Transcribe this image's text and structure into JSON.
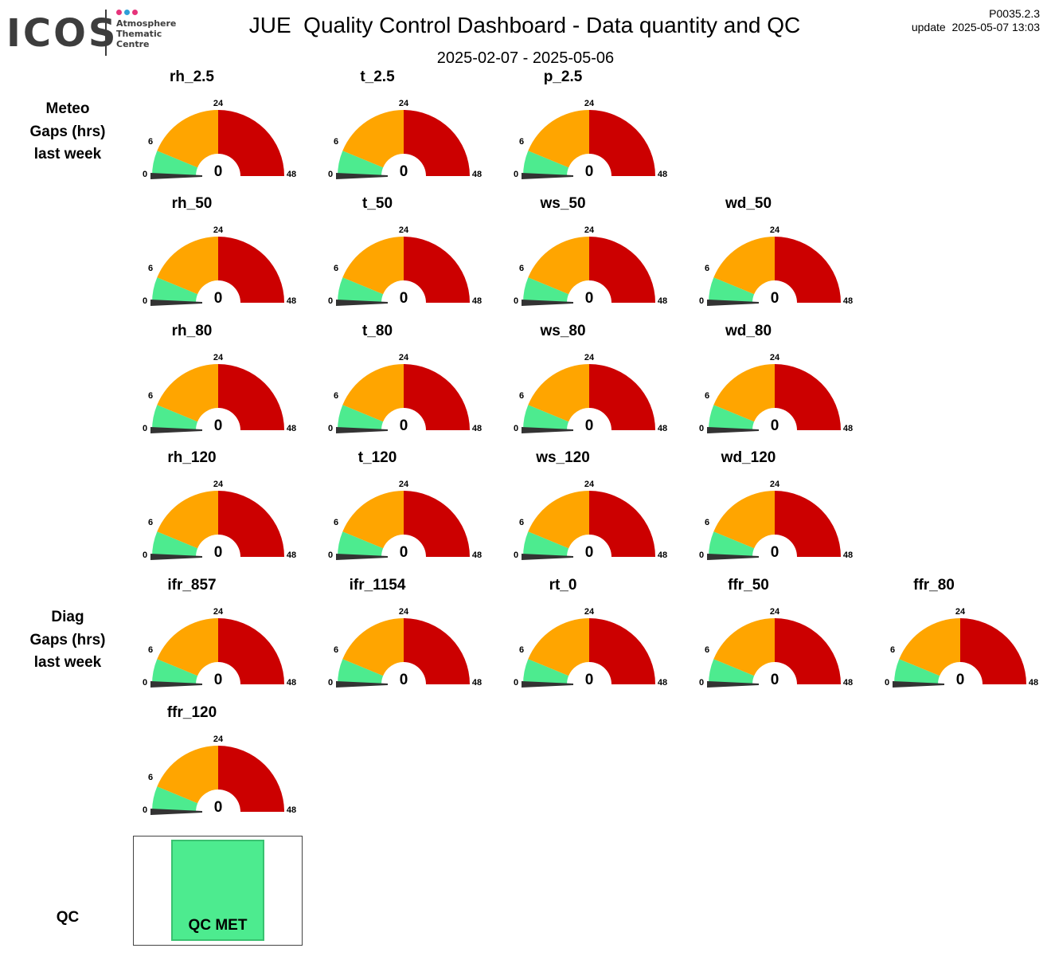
{
  "header": {
    "logo_text": "ICOS",
    "logo_sub": [
      "Atmosphere",
      "Thematic",
      "Centre"
    ],
    "logo_dot_colors": [
      "#e6337a",
      "#2f9fd8",
      "#e6337a"
    ],
    "title": "JUE  Quality Control Dashboard - Data quantity and QC",
    "subtitle": "2025-02-07 - 2025-05-06",
    "version": "P0035.2.3",
    "update": "update  2025-05-07 13:03"
  },
  "sections": {
    "meteo": [
      "Meteo",
      "Gaps (hrs)",
      "last week"
    ],
    "diag": [
      "Diag",
      "Gaps (hrs)",
      "last week"
    ],
    "qc": "QC"
  },
  "colors": {
    "green": "#4deb8f",
    "orange": "#ffa500",
    "red": "#cc0000",
    "needle": "#333333"
  },
  "chart_data": {
    "type": "gauge",
    "scale": {
      "min": 0,
      "max": 48
    },
    "bands": [
      {
        "from": 0,
        "to": 6,
        "color": "green"
      },
      {
        "from": 6,
        "to": 24,
        "color": "orange"
      },
      {
        "from": 24,
        "to": 48,
        "color": "red"
      }
    ],
    "tick_labels": [
      "0",
      "6",
      "24",
      "48"
    ],
    "gauges": [
      {
        "name": "rh_2.5",
        "value": 0,
        "row": 0,
        "col": 0
      },
      {
        "name": "t_2.5",
        "value": 0,
        "row": 0,
        "col": 1
      },
      {
        "name": "p_2.5",
        "value": 0,
        "row": 0,
        "col": 2
      },
      {
        "name": "rh_50",
        "value": 0,
        "row": 1,
        "col": 0
      },
      {
        "name": "t_50",
        "value": 0,
        "row": 1,
        "col": 1
      },
      {
        "name": "ws_50",
        "value": 0,
        "row": 1,
        "col": 2
      },
      {
        "name": "wd_50",
        "value": 0,
        "row": 1,
        "col": 3
      },
      {
        "name": "rh_80",
        "value": 0,
        "row": 2,
        "col": 0
      },
      {
        "name": "t_80",
        "value": 0,
        "row": 2,
        "col": 1
      },
      {
        "name": "ws_80",
        "value": 0,
        "row": 2,
        "col": 2
      },
      {
        "name": "wd_80",
        "value": 0,
        "row": 2,
        "col": 3
      },
      {
        "name": "rh_120",
        "value": 0,
        "row": 3,
        "col": 0
      },
      {
        "name": "t_120",
        "value": 0,
        "row": 3,
        "col": 1
      },
      {
        "name": "ws_120",
        "value": 0,
        "row": 3,
        "col": 2
      },
      {
        "name": "wd_120",
        "value": 0,
        "row": 3,
        "col": 3
      },
      {
        "name": "ifr_857",
        "value": 0,
        "row": 4,
        "col": 0
      },
      {
        "name": "ifr_1154",
        "value": 0,
        "row": 4,
        "col": 1
      },
      {
        "name": "rt_0",
        "value": 0,
        "row": 4,
        "col": 2
      },
      {
        "name": "ffr_50",
        "value": 0,
        "row": 4,
        "col": 3
      },
      {
        "name": "ffr_80",
        "value": 0,
        "row": 4,
        "col": 4
      },
      {
        "name": "ffr_120",
        "value": 0,
        "row": 5,
        "col": 0
      }
    ],
    "qc": {
      "label": "QC MET",
      "status": "ok",
      "color": "green"
    }
  }
}
